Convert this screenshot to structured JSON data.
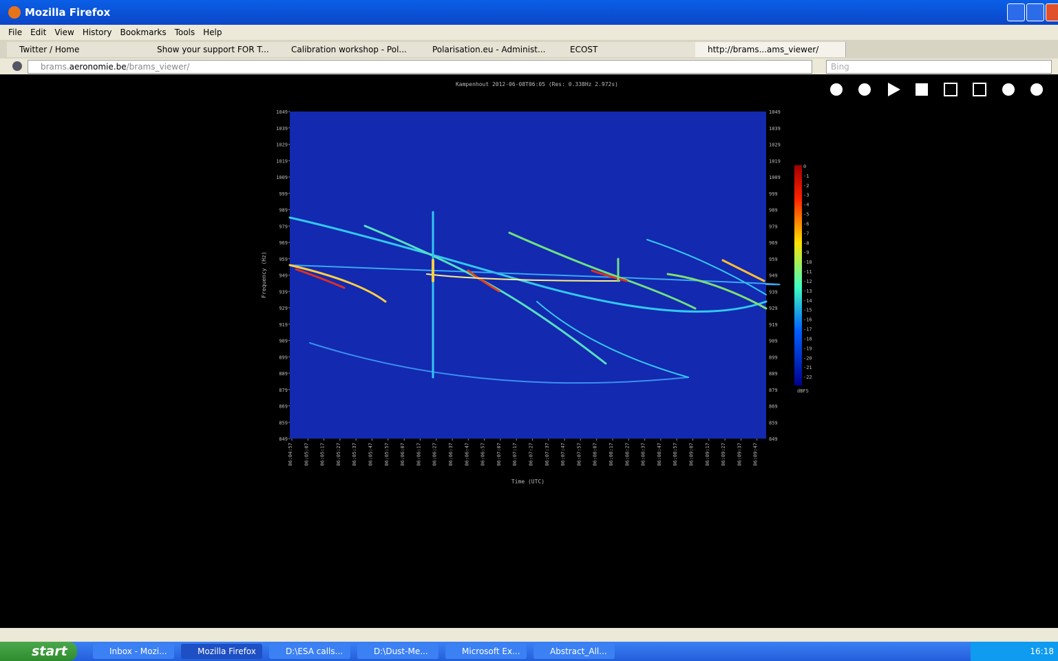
{
  "window": {
    "title": "Mozilla Firefox"
  },
  "menu": [
    "File",
    "Edit",
    "View",
    "History",
    "Bookmarks",
    "Tools",
    "Help"
  ],
  "tabs": [
    "Twitter / Home",
    "Show your support FOR T...",
    "Calibration workshop - Pol...",
    "Polarisation.eu - Administ...",
    "ECOST",
    "http://brams...ams_viewer/"
  ],
  "address": {
    "prefix": "brams.",
    "domain": "aeronomie.be",
    "path": "/brams_viewer/"
  },
  "search": "Bing",
  "spectrogram": {
    "title": "Kampenhout 2012-06-08T06:05 (Res: 0.338Hz 2.972s)",
    "y_label": "Frequency (Hz)",
    "x_label": "Time (UTC)",
    "y_ticks": [
      "1049",
      "1039",
      "1029",
      "1019",
      "1009",
      "999",
      "989",
      "979",
      "969",
      "959",
      "949",
      "939",
      "929",
      "919",
      "909",
      "899",
      "889",
      "879",
      "869",
      "859",
      "849"
    ],
    "x_ticks": [
      "06:04:57",
      "06:05:07",
      "06:05:17",
      "06:05:27",
      "06:05:37",
      "06:05:47",
      "06:05:57",
      "06:06:07",
      "06:06:17",
      "06:06:27",
      "06:06:37",
      "06:06:47",
      "06:06:57",
      "06:07:07",
      "06:07:17",
      "06:07:27",
      "06:07:37",
      "06:07:47",
      "06:07:57",
      "06:08:07",
      "06:08:17",
      "06:08:27",
      "06:08:37",
      "06:08:47",
      "06:08:57",
      "06:09:07",
      "06:09:17",
      "06:09:27",
      "06:09:37",
      "06:09:47"
    ],
    "colorbar_ticks": [
      "0",
      "-1",
      "-2",
      "-3",
      "-4",
      "-5",
      "-6",
      "-7",
      "-8",
      "-9",
      "-10",
      "-11",
      "-12",
      "-13",
      "-14",
      "-15",
      "-16",
      "-17",
      "-18",
      "-19",
      "-20",
      "-21",
      "-22"
    ],
    "colorbar_unit": "dBFS"
  },
  "taskbar": {
    "start": "start",
    "items": [
      "Inbox - Mozi...",
      "Mozilla Firefox",
      "D:\\ESA calls...",
      "D:\\Dust-Me...",
      "Microsoft Ex...",
      "Abstract_All..."
    ],
    "clock": "16:18"
  }
}
